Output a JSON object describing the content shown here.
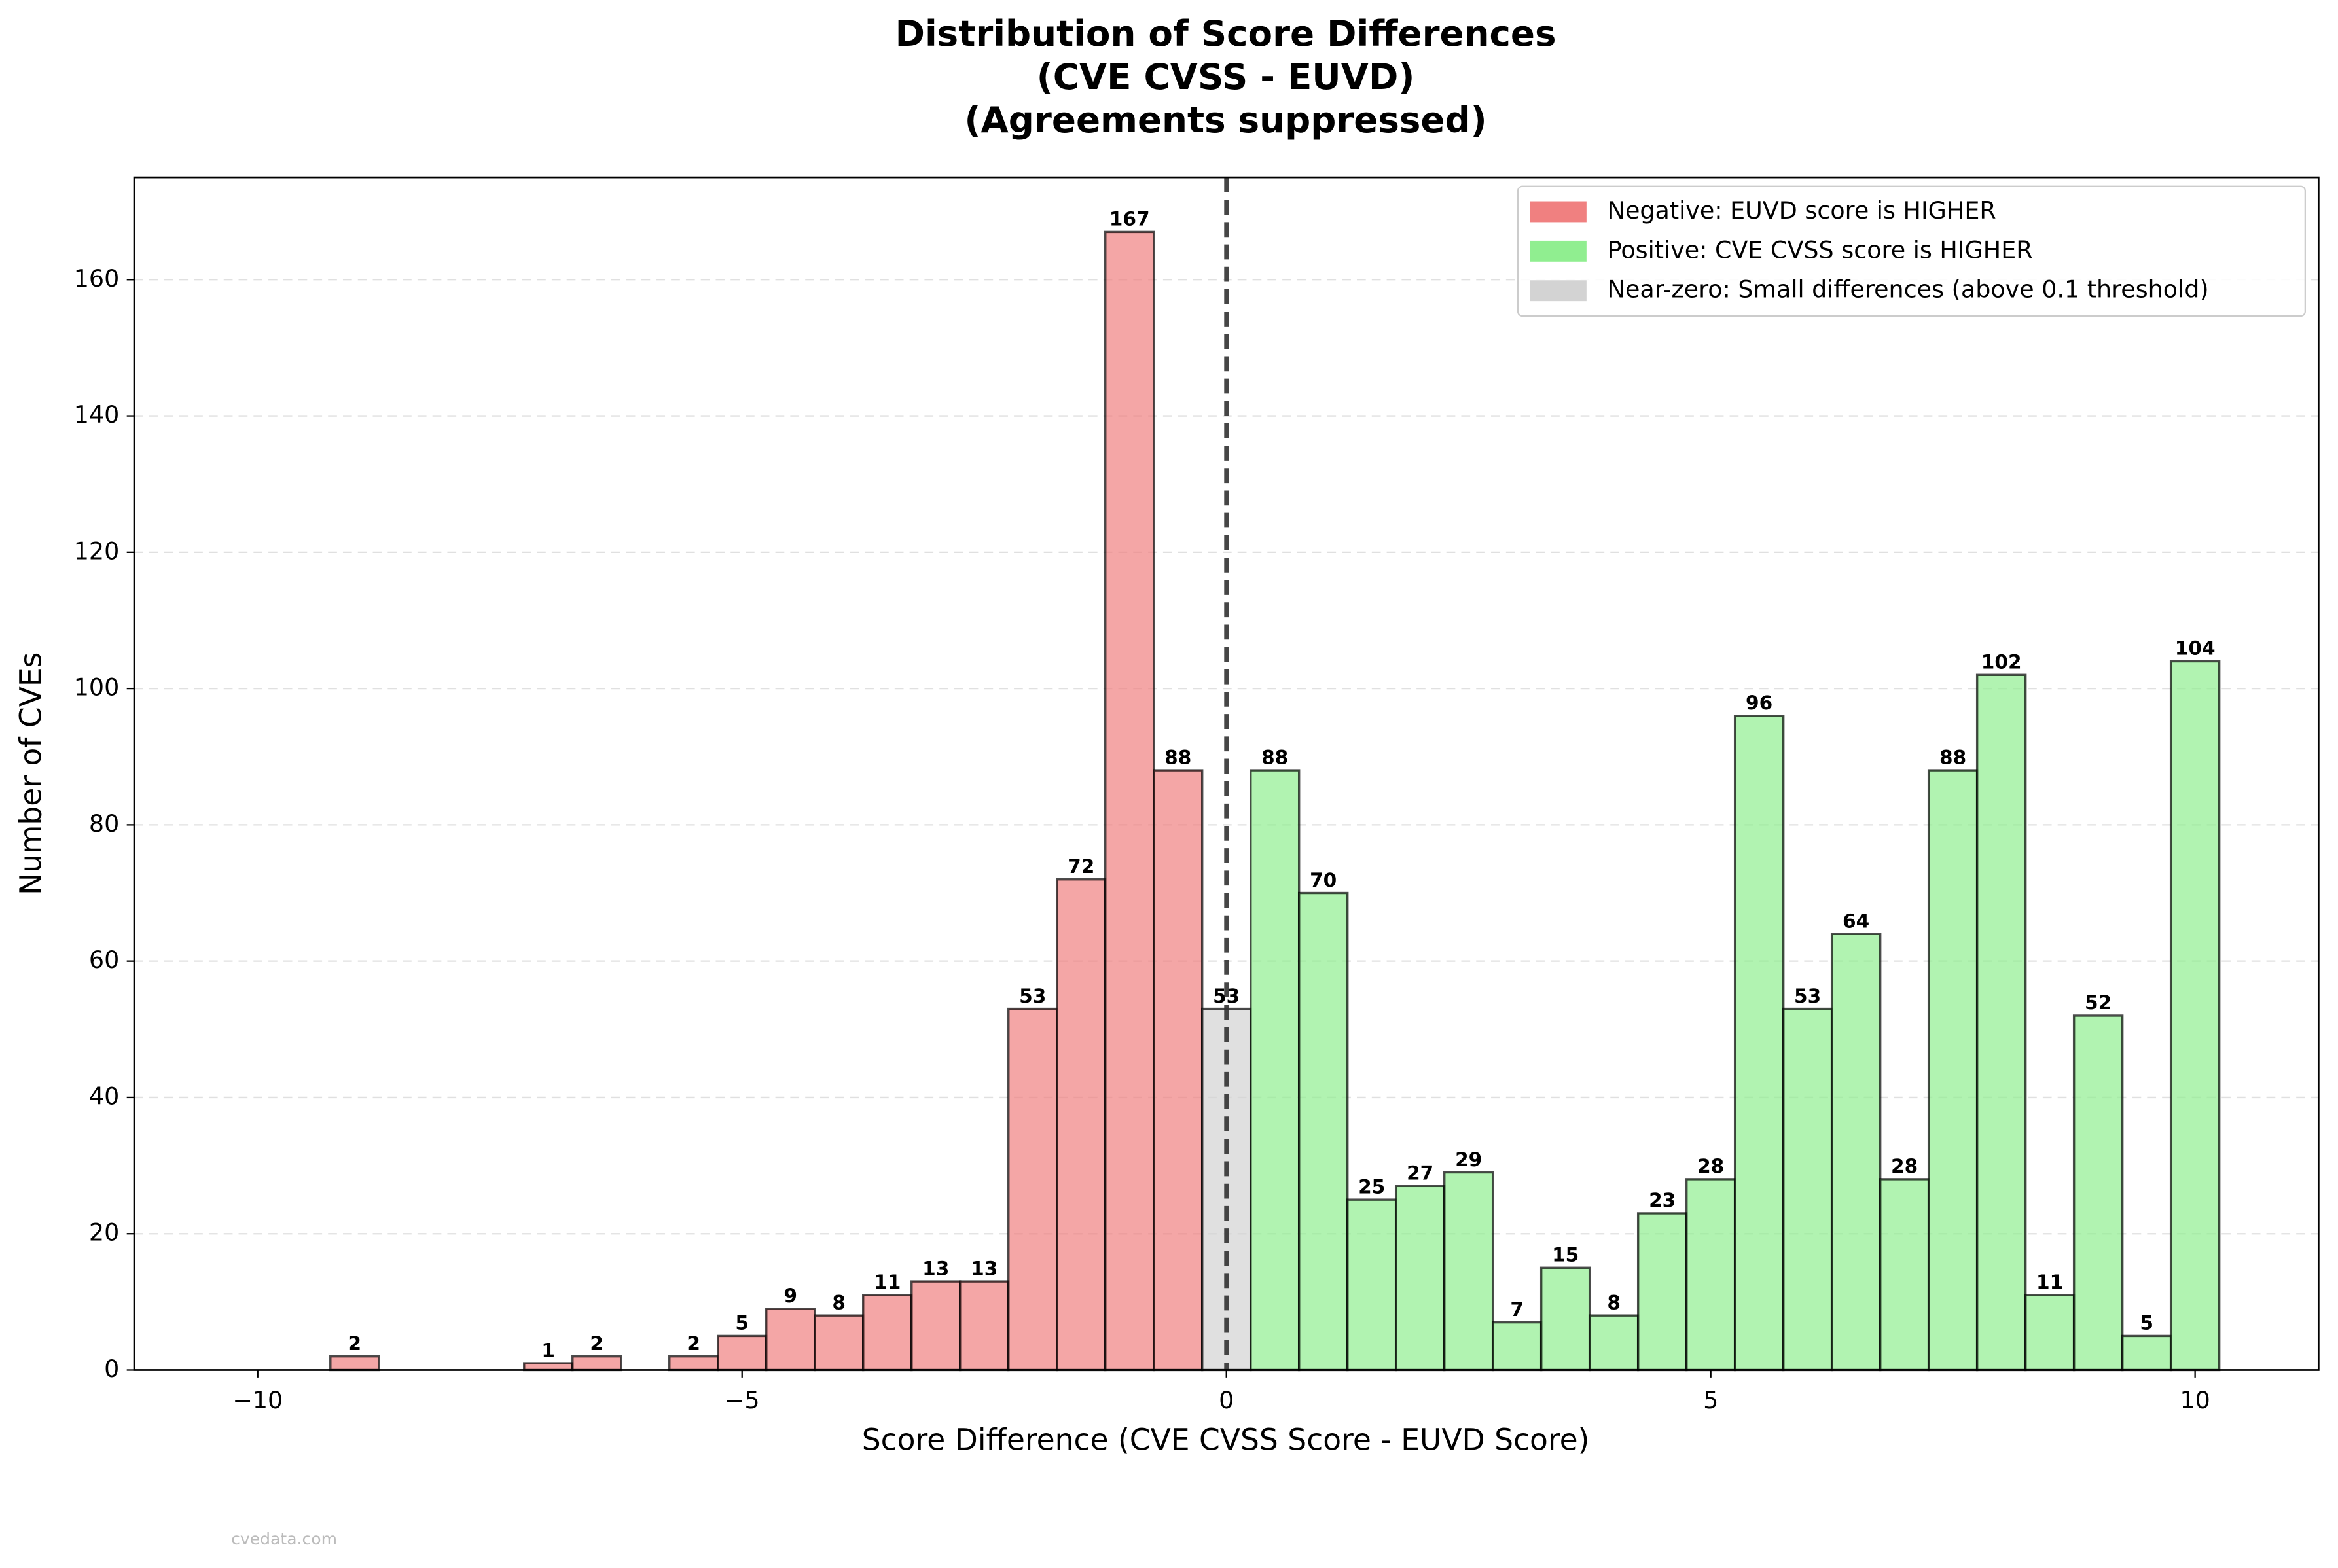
{
  "chart_data": {
    "type": "histogram",
    "title": [
      "Distribution of Score Differences",
      "(CVE CVSS - EUVD)",
      "(Agreements suppressed)"
    ],
    "x_label": "Score Difference (CVE CVSS Score - EUVD Score)",
    "y_label": "Number of CVEs",
    "bins": [
      -10.25,
      -9.75,
      -9.25,
      -8.75,
      -8.25,
      -7.75,
      -7.25,
      -6.75,
      -6.25,
      -5.75,
      -5.25,
      -4.75,
      -4.25,
      -3.75,
      -3.25,
      -2.75,
      -2.25,
      -1.75,
      -1.25,
      -0.75,
      -0.25,
      0.25,
      0.75,
      1.25,
      1.75,
      2.25,
      2.75,
      3.25,
      3.75,
      4.25,
      4.75,
      5.25,
      5.75,
      6.25,
      6.75,
      7.25,
      7.75,
      8.25,
      8.75,
      9.25,
      9.75,
      10.25
    ],
    "counts": [
      0,
      0,
      2,
      0,
      0,
      0,
      1,
      2,
      0,
      2,
      5,
      9,
      8,
      11,
      13,
      13,
      53,
      72,
      167,
      88,
      53,
      88,
      70,
      25,
      27,
      29,
      7,
      15,
      8,
      23,
      28,
      96,
      53,
      64,
      28,
      88,
      102,
      11,
      52,
      5,
      104
    ],
    "bar_colors": [
      "#f08080",
      "#f08080",
      "#f08080",
      "#f08080",
      "#f08080",
      "#f08080",
      "#f08080",
      "#f08080",
      "#f08080",
      "#f08080",
      "#f08080",
      "#f08080",
      "#f08080",
      "#f08080",
      "#f08080",
      "#f08080",
      "#f08080",
      "#f08080",
      "#f08080",
      "#f08080",
      "#d3d3d3",
      "#90ee90",
      "#90ee90",
      "#90ee90",
      "#90ee90",
      "#90ee90",
      "#90ee90",
      "#90ee90",
      "#90ee90",
      "#90ee90",
      "#90ee90",
      "#90ee90",
      "#90ee90",
      "#90ee90",
      "#90ee90",
      "#90ee90",
      "#90ee90",
      "#90ee90",
      "#90ee90",
      "#90ee90",
      "#90ee90"
    ],
    "legend": [
      {
        "name": "Negative: EUVD score is HIGHER",
        "color": "#f08080"
      },
      {
        "name": "Positive: CVE CVSS score is HIGHER",
        "color": "#90ee90"
      },
      {
        "name": "Near-zero: Small differences (above 0.1 threshold)",
        "color": "#d3d3d3"
      }
    ],
    "legend_position": "upper right",
    "xlim": [
      -11.275,
      11.275
    ],
    "ylim": [
      0,
      175
    ],
    "xticks": [
      {
        "value": -10,
        "label": "−10"
      },
      {
        "value": -5,
        "label": "−5"
      },
      0,
      5,
      10
    ],
    "yticks": [
      0,
      20,
      40,
      60,
      80,
      100,
      120,
      140,
      160
    ],
    "grid": true,
    "vline": 0,
    "watermark": "cvedata.com"
  }
}
